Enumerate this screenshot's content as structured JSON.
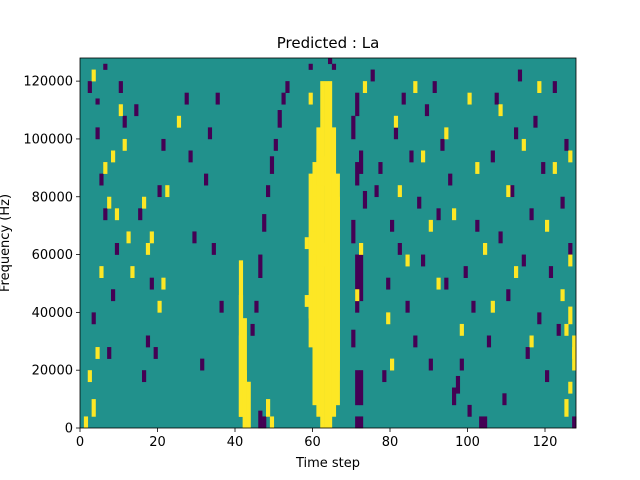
{
  "chart_data": {
    "type": "heatmap",
    "title": "Predicted : La",
    "xlabel": "Time step",
    "ylabel": "Frequency (Hz)",
    "xlim": [
      0,
      128
    ],
    "ylim": [
      0,
      128000
    ],
    "x_ticks": [
      0,
      20,
      40,
      60,
      80,
      100,
      120
    ],
    "y_ticks": [
      0,
      20000,
      40000,
      60000,
      80000,
      100000,
      120000
    ],
    "x_tick_labels": [
      "0",
      "20",
      "40",
      "60",
      "80",
      "100",
      "120"
    ],
    "y_tick_labels": [
      "0",
      "20000",
      "40000",
      "60000",
      "80000",
      "100000",
      "120000"
    ],
    "grid": false,
    "legend": "none",
    "value_levels": [
      -1,
      0,
      1
    ],
    "colors": {
      "low": "#440154",
      "mid": "#21918c",
      "high": "#fde725"
    },
    "rows": 64,
    "columns": 128,
    "default_value": 0,
    "cells": [
      [
        41,
        2,
        14,
        1
      ],
      [
        41,
        2,
        21,
        1
      ],
      [
        41,
        2,
        27,
        1
      ],
      [
        42,
        0,
        10,
        1
      ],
      [
        42,
        0,
        19,
        1
      ],
      [
        43,
        0,
        8,
        1
      ],
      [
        62,
        0,
        60,
        1
      ],
      [
        63,
        0,
        60,
        1
      ],
      [
        64,
        0,
        60,
        1
      ],
      [
        61,
        2,
        50,
        1
      ],
      [
        65,
        2,
        50,
        1
      ],
      [
        60,
        4,
        42,
        1
      ],
      [
        66,
        4,
        40,
        1
      ],
      [
        60,
        10,
        30,
        1
      ],
      [
        66,
        10,
        30,
        1
      ],
      [
        59,
        14,
        30,
        1
      ],
      [
        61,
        42,
        6,
        1
      ],
      [
        62,
        42,
        5,
        1
      ],
      [
        61,
        28,
        4,
        1
      ],
      [
        62,
        28,
        4,
        1
      ],
      [
        63,
        28,
        4,
        1
      ],
      [
        60,
        30,
        4,
        1
      ],
      [
        58,
        21,
        2,
        1
      ],
      [
        59,
        19,
        4,
        1
      ],
      [
        58,
        31,
        2,
        1
      ],
      [
        59,
        56,
        2,
        1
      ],
      [
        59,
        62,
        1,
        -1
      ],
      [
        64,
        63,
        1,
        -1
      ],
      [
        65,
        62,
        1,
        -1
      ],
      [
        75,
        60,
        2,
        -1
      ],
      [
        71,
        0,
        2,
        -1
      ],
      [
        72,
        0,
        2,
        -1
      ],
      [
        71,
        4,
        6,
        -1
      ],
      [
        72,
        4,
        6,
        -1
      ],
      [
        70,
        14,
        3,
        -1
      ],
      [
        71,
        20,
        10,
        -1
      ],
      [
        72,
        22,
        8,
        -1
      ],
      [
        70,
        32,
        4,
        -1
      ],
      [
        73,
        38,
        3,
        -1
      ],
      [
        71,
        42,
        4,
        -1
      ],
      [
        72,
        44,
        4,
        -1
      ],
      [
        70,
        50,
        4,
        -1
      ],
      [
        71,
        54,
        4,
        -1
      ],
      [
        71,
        22,
        2,
        1
      ],
      [
        72,
        30,
        2,
        1
      ],
      [
        73,
        58,
        2,
        1
      ],
      [
        46,
        0,
        3,
        -1
      ],
      [
        47,
        0,
        2,
        -1
      ],
      [
        48,
        2,
        3,
        1
      ],
      [
        49,
        0,
        2,
        1
      ],
      [
        44,
        16,
        2,
        -1
      ],
      [
        45,
        20,
        2,
        -1
      ],
      [
        46,
        26,
        4,
        -1
      ],
      [
        47,
        34,
        3,
        -1
      ],
      [
        48,
        40,
        2,
        -1
      ],
      [
        49,
        44,
        3,
        -1
      ],
      [
        50,
        48,
        2,
        -1
      ],
      [
        51,
        52,
        3,
        -1
      ],
      [
        52,
        56,
        2,
        -1
      ],
      [
        53,
        58,
        2,
        -1
      ],
      [
        32,
        42,
        2,
        -1
      ],
      [
        33,
        50,
        2,
        -1
      ],
      [
        35,
        56,
        2,
        -1
      ],
      [
        34,
        30,
        2,
        -1
      ],
      [
        36,
        20,
        2,
        -1
      ],
      [
        31,
        10,
        2,
        -1
      ],
      [
        29,
        32,
        2,
        -1
      ],
      [
        28,
        46,
        2,
        -1
      ],
      [
        27,
        56,
        2,
        -1
      ],
      [
        20,
        20,
        2,
        1
      ],
      [
        21,
        24,
        2,
        1
      ],
      [
        18,
        32,
        2,
        1
      ],
      [
        22,
        40,
        2,
        1
      ],
      [
        25,
        52,
        2,
        1
      ],
      [
        16,
        8,
        2,
        -1
      ],
      [
        17,
        14,
        2,
        -1
      ],
      [
        18,
        24,
        2,
        -1
      ],
      [
        19,
        12,
        2,
        -1
      ],
      [
        20,
        40,
        2,
        -1
      ],
      [
        21,
        48,
        2,
        -1
      ],
      [
        15,
        36,
        2,
        -1
      ],
      [
        14,
        54,
        2,
        -1
      ],
      [
        5,
        42,
        2,
        -1
      ],
      [
        6,
        36,
        2,
        -1
      ],
      [
        7,
        12,
        2,
        -1
      ],
      [
        8,
        22,
        2,
        -1
      ],
      [
        9,
        30,
        2,
        -1
      ],
      [
        3,
        18,
        2,
        -1
      ],
      [
        4,
        50,
        2,
        -1
      ],
      [
        2,
        58,
        2,
        -1
      ],
      [
        10,
        58,
        2,
        -1
      ],
      [
        11,
        52,
        2,
        -1
      ],
      [
        3,
        2,
        3,
        1
      ],
      [
        4,
        12,
        2,
        1
      ],
      [
        5,
        26,
        2,
        1
      ],
      [
        6,
        44,
        2,
        1
      ],
      [
        7,
        38,
        2,
        1
      ],
      [
        1,
        0,
        2,
        1
      ],
      [
        2,
        8,
        2,
        1
      ],
      [
        8,
        46,
        2,
        1
      ],
      [
        9,
        36,
        2,
        1
      ],
      [
        10,
        54,
        2,
        1
      ],
      [
        11,
        48,
        2,
        1
      ],
      [
        12,
        32,
        2,
        1
      ],
      [
        13,
        26,
        2,
        1
      ],
      [
        16,
        38,
        2,
        1
      ],
      [
        17,
        30,
        2,
        1
      ],
      [
        3,
        60,
        2,
        1
      ],
      [
        4,
        56,
        1,
        -1
      ],
      [
        6,
        62,
        1,
        -1
      ],
      [
        76,
        40,
        2,
        -1
      ],
      [
        77,
        44,
        2,
        -1
      ],
      [
        78,
        8,
        2,
        -1
      ],
      [
        79,
        24,
        2,
        -1
      ],
      [
        80,
        34,
        2,
        -1
      ],
      [
        81,
        50,
        2,
        -1
      ],
      [
        82,
        30,
        2,
        -1
      ],
      [
        83,
        56,
        2,
        -1
      ],
      [
        84,
        20,
        2,
        -1
      ],
      [
        85,
        46,
        2,
        -1
      ],
      [
        86,
        14,
        2,
        -1
      ],
      [
        87,
        38,
        2,
        -1
      ],
      [
        88,
        28,
        2,
        -1
      ],
      [
        89,
        54,
        2,
        -1
      ],
      [
        90,
        10,
        2,
        -1
      ],
      [
        91,
        58,
        2,
        -1
      ],
      [
        92,
        36,
        2,
        -1
      ],
      [
        93,
        48,
        2,
        -1
      ],
      [
        94,
        24,
        2,
        -1
      ],
      [
        95,
        42,
        2,
        -1
      ],
      [
        96,
        4,
        3,
        -1
      ],
      [
        97,
        6,
        3,
        -1
      ],
      [
        98,
        10,
        2,
        -1
      ],
      [
        99,
        26,
        2,
        -1
      ],
      [
        100,
        2,
        2,
        -1
      ],
      [
        101,
        20,
        2,
        -1
      ],
      [
        102,
        34,
        2,
        -1
      ],
      [
        103,
        0,
        2,
        -1
      ],
      [
        104,
        0,
        2,
        -1
      ],
      [
        105,
        14,
        2,
        -1
      ],
      [
        106,
        46,
        2,
        -1
      ],
      [
        107,
        56,
        2,
        -1
      ],
      [
        108,
        32,
        2,
        -1
      ],
      [
        109,
        4,
        2,
        -1
      ],
      [
        110,
        22,
        2,
        -1
      ],
      [
        111,
        40,
        2,
        -1
      ],
      [
        112,
        50,
        2,
        -1
      ],
      [
        113,
        60,
        2,
        -1
      ],
      [
        114,
        28,
        2,
        -1
      ],
      [
        115,
        12,
        2,
        -1
      ],
      [
        116,
        36,
        2,
        -1
      ],
      [
        117,
        52,
        2,
        -1
      ],
      [
        118,
        18,
        2,
        -1
      ],
      [
        119,
        44,
        2,
        -1
      ],
      [
        120,
        8,
        2,
        -1
      ],
      [
        121,
        26,
        2,
        -1
      ],
      [
        122,
        58,
        2,
        -1
      ],
      [
        123,
        16,
        2,
        -1
      ],
      [
        124,
        38,
        2,
        -1
      ],
      [
        125,
        48,
        2,
        -1
      ],
      [
        126,
        30,
        2,
        -1
      ],
      [
        127,
        0,
        2,
        -1
      ],
      [
        79,
        18,
        2,
        1
      ],
      [
        80,
        10,
        2,
        1
      ],
      [
        81,
        52,
        2,
        1
      ],
      [
        82,
        40,
        2,
        1
      ],
      [
        84,
        28,
        2,
        1
      ],
      [
        86,
        58,
        2,
        1
      ],
      [
        88,
        46,
        2,
        1
      ],
      [
        90,
        34,
        2,
        1
      ],
      [
        92,
        24,
        2,
        1
      ],
      [
        94,
        50,
        2,
        1
      ],
      [
        96,
        36,
        2,
        1
      ],
      [
        98,
        16,
        2,
        1
      ],
      [
        100,
        56,
        2,
        1
      ],
      [
        102,
        44,
        2,
        1
      ],
      [
        104,
        30,
        2,
        1
      ],
      [
        106,
        20,
        2,
        1
      ],
      [
        108,
        54,
        2,
        1
      ],
      [
        110,
        40,
        2,
        1
      ],
      [
        112,
        26,
        2,
        1
      ],
      [
        114,
        48,
        2,
        1
      ],
      [
        116,
        14,
        2,
        1
      ],
      [
        118,
        58,
        2,
        1
      ],
      [
        120,
        34,
        2,
        1
      ],
      [
        122,
        44,
        2,
        1
      ],
      [
        124,
        22,
        2,
        1
      ],
      [
        126,
        18,
        3,
        1
      ],
      [
        127,
        10,
        4,
        1
      ],
      [
        126,
        46,
        2,
        1
      ],
      [
        125,
        2,
        3,
        1
      ],
      [
        126,
        6,
        2,
        1
      ],
      [
        127,
        12,
        4,
        1
      ],
      [
        125,
        16,
        2,
        1
      ],
      [
        126,
        28,
        2,
        1
      ]
    ]
  }
}
